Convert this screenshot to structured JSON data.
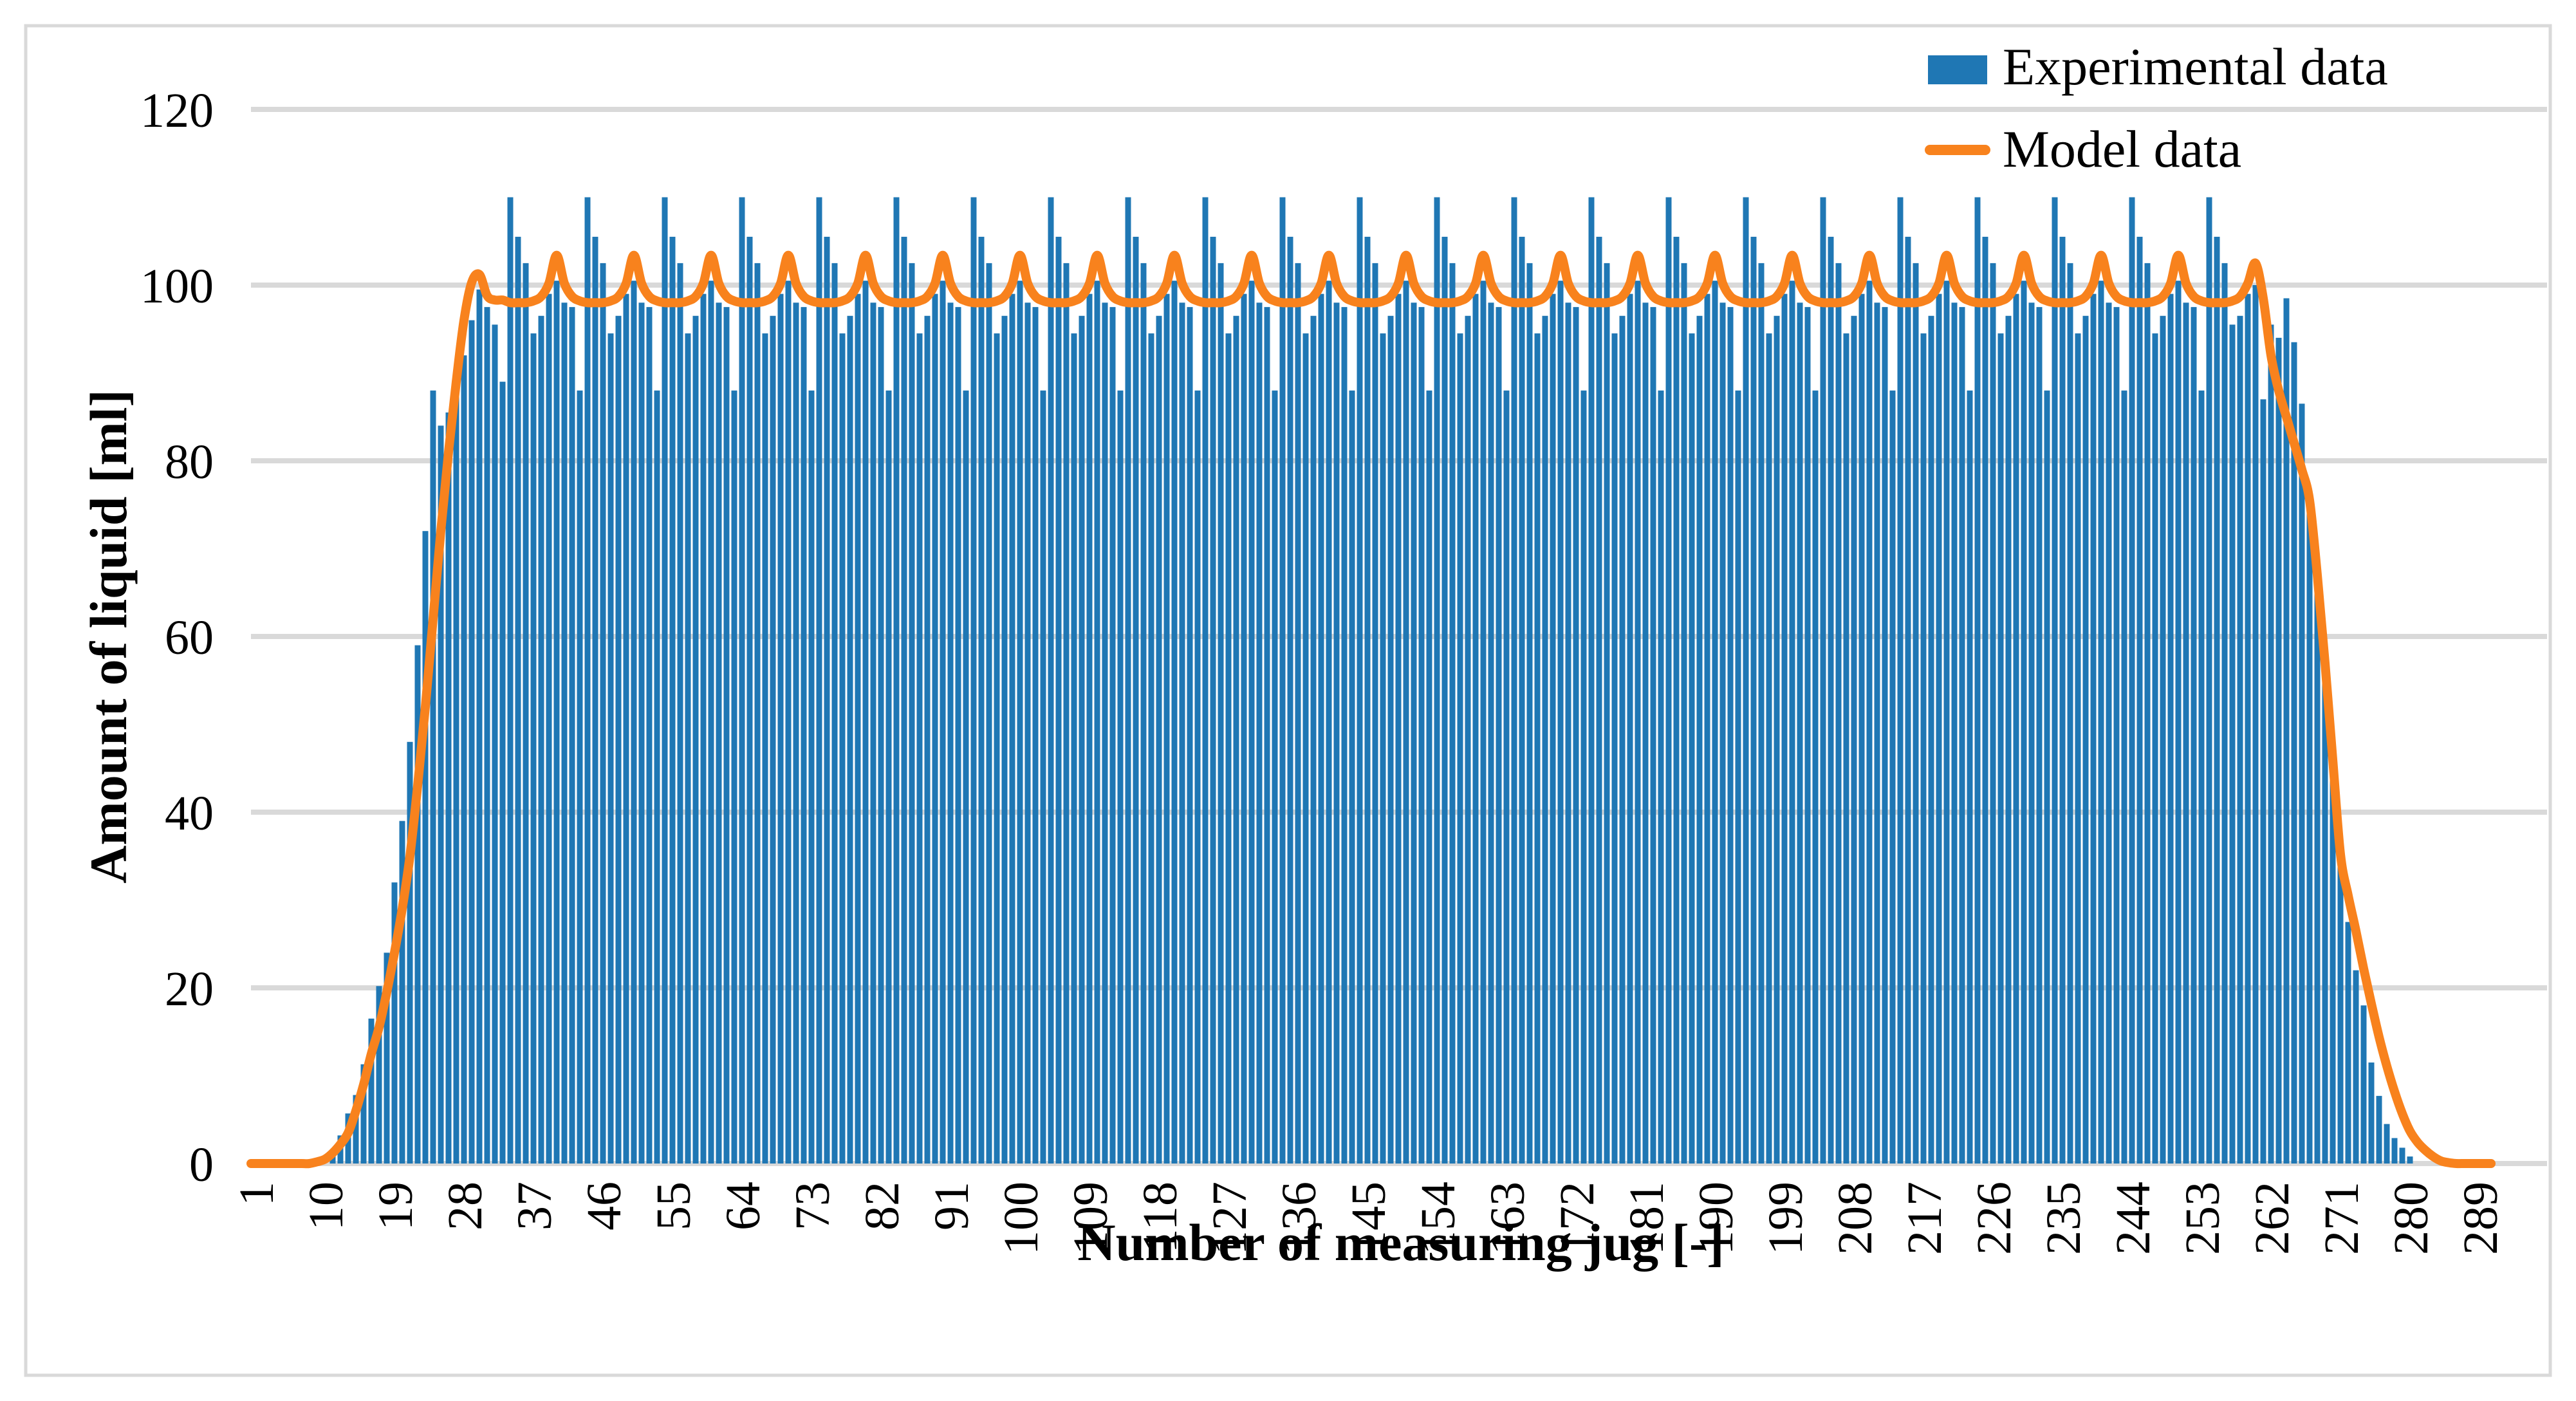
{
  "chart_data": {
    "type": "bar",
    "title": "",
    "xlabel": "Number of measuring jug [-]",
    "ylabel": "Amount of liquid [ml]",
    "x_range": [
      1,
      289
    ],
    "ylim": [
      0,
      120
    ],
    "yticks": [
      0,
      20,
      40,
      60,
      80,
      100,
      120
    ],
    "xticks": [
      1,
      10,
      19,
      28,
      37,
      46,
      55,
      64,
      73,
      82,
      91,
      100,
      109,
      118,
      127,
      136,
      145,
      154,
      163,
      172,
      181,
      190,
      199,
      208,
      217,
      226,
      235,
      244,
      253,
      262,
      271,
      280,
      289
    ],
    "grid": "horizontal",
    "legend_position": "top-right",
    "colors": {
      "experimental": "#1F77B4",
      "model": "#F8821D",
      "gridline": "#D9D9D9",
      "border": "#D9D9D9",
      "text": "#000000",
      "background": "#FFFFFF"
    },
    "series": [
      {
        "name": "Experimental data",
        "type": "bar",
        "color": "#1F77B4",
        "values": [
          0,
          0,
          0,
          0,
          0,
          0,
          0,
          0,
          0,
          0,
          1.2,
          3.2,
          5.7,
          7.8,
          11.3,
          16.5,
          20.2,
          24,
          32,
          39,
          48,
          59,
          72,
          88,
          84,
          85.5,
          89.5,
          92,
          96,
          99.5,
          97.5,
          95.5,
          89,
          110,
          105.5,
          102.5,
          94.5,
          96.5,
          99,
          100.5,
          98,
          97.5,
          88,
          110,
          105.5,
          102.5,
          94.5,
          96.5,
          99,
          100.5,
          98,
          97.5,
          88,
          110,
          105.5,
          102.5,
          94.5,
          96.5,
          99,
          100.5,
          98,
          97.5,
          88,
          110,
          105.5,
          102.5,
          94.5,
          96.5,
          99,
          100.5,
          98,
          97.5,
          88,
          110,
          105.5,
          102.5,
          94.5,
          96.5,
          99,
          100.5,
          98,
          97.5,
          88,
          110,
          105.5,
          102.5,
          94.5,
          96.5,
          99,
          100.5,
          98,
          97.5,
          88,
          110,
          105.5,
          102.5,
          94.5,
          96.5,
          99,
          100.5,
          98,
          97.5,
          88,
          110,
          105.5,
          102.5,
          94.5,
          96.5,
          99,
          100.5,
          98,
          97.5,
          88,
          110,
          105.5,
          102.5,
          94.5,
          96.5,
          99,
          100.5,
          98,
          97.5,
          88,
          110,
          105.5,
          102.5,
          94.5,
          96.5,
          99,
          100.5,
          98,
          97.5,
          88,
          110,
          105.5,
          102.5,
          94.5,
          96.5,
          99,
          100.5,
          98,
          97.5,
          88,
          110,
          105.5,
          102.5,
          94.5,
          96.5,
          99,
          100.5,
          98,
          97.5,
          88,
          110,
          105.5,
          102.5,
          94.5,
          96.5,
          99,
          100.5,
          98,
          97.5,
          88,
          110,
          105.5,
          102.5,
          94.5,
          96.5,
          99,
          100.5,
          98,
          97.5,
          88,
          110,
          105.5,
          102.5,
          94.5,
          96.5,
          99,
          100.5,
          98,
          97.5,
          88,
          110,
          105.5,
          102.5,
          94.5,
          96.5,
          99,
          100.5,
          98,
          97.5,
          88,
          110,
          105.5,
          102.5,
          94.5,
          96.5,
          99,
          100.5,
          98,
          97.5,
          88,
          110,
          105.5,
          102.5,
          94.5,
          96.5,
          99,
          100.5,
          98,
          97.5,
          88,
          110,
          105.5,
          102.5,
          94.5,
          96.5,
          99,
          100.5,
          98,
          97.5,
          88,
          110,
          105.5,
          102.5,
          94.5,
          96.5,
          99,
          100.5,
          98,
          97.5,
          88,
          110,
          105.5,
          102.5,
          94.5,
          96.5,
          99,
          100.5,
          98,
          97.5,
          88,
          110,
          105.5,
          102.5,
          94.5,
          96.5,
          99,
          100.5,
          98,
          97.5,
          88,
          110,
          105.5,
          102.5,
          95.5,
          96.5,
          99,
          100,
          87,
          95.5,
          94,
          98.5,
          93.5,
          86.5,
          76,
          65,
          55,
          45,
          36.5,
          27.5,
          22,
          18,
          11.5,
          7.7,
          4.5,
          2.9,
          1.8,
          0.8,
          0,
          0,
          0,
          0,
          0,
          0,
          0,
          0,
          0
        ]
      },
      {
        "name": "Model data",
        "type": "line",
        "color": "#F8821D",
        "values": [
          0,
          0,
          0,
          0,
          0,
          0,
          0,
          0,
          0.2,
          0.5,
          1.2,
          2.2,
          3.5,
          6,
          9,
          12.5,
          15.5,
          19.5,
          24,
          29,
          35,
          43,
          52,
          62,
          72,
          81,
          89,
          96,
          100.3,
          101.2,
          98.8,
          98.3,
          98.3,
          98,
          98,
          98,
          98.2,
          98.7,
          100.2,
          103.4,
          100.2,
          98.7,
          98.2,
          98,
          98,
          98,
          98.2,
          98.7,
          100.2,
          103.4,
          100.2,
          98.7,
          98.2,
          98,
          98,
          98,
          98.2,
          98.7,
          100.2,
          103.4,
          100.2,
          98.7,
          98.2,
          98,
          98,
          98,
          98.2,
          98.7,
          100.2,
          103.4,
          100.2,
          98.7,
          98.2,
          98,
          98,
          98,
          98.2,
          98.7,
          100.2,
          103.4,
          100.2,
          98.7,
          98.2,
          98,
          98,
          98,
          98.2,
          98.7,
          100.2,
          103.4,
          100.2,
          98.7,
          98.2,
          98,
          98,
          98,
          98.2,
          98.7,
          100.2,
          103.4,
          100.2,
          98.7,
          98.2,
          98,
          98,
          98,
          98.2,
          98.7,
          100.2,
          103.4,
          100.2,
          98.7,
          98.2,
          98,
          98,
          98,
          98.2,
          98.7,
          100.2,
          103.4,
          100.2,
          98.7,
          98.2,
          98,
          98,
          98,
          98.2,
          98.7,
          100.2,
          103.4,
          100.2,
          98.7,
          98.2,
          98,
          98,
          98,
          98.2,
          98.7,
          100.2,
          103.4,
          100.2,
          98.7,
          98.2,
          98,
          98,
          98,
          98.2,
          98.7,
          100.2,
          103.4,
          100.2,
          98.7,
          98.2,
          98,
          98,
          98,
          98.2,
          98.7,
          100.2,
          103.4,
          100.2,
          98.7,
          98.2,
          98,
          98,
          98,
          98.2,
          98.7,
          100.2,
          103.4,
          100.2,
          98.7,
          98.2,
          98,
          98,
          98,
          98.2,
          98.7,
          100.2,
          103.4,
          100.2,
          98.7,
          98.2,
          98,
          98,
          98,
          98.2,
          98.7,
          100.2,
          103.4,
          100.2,
          98.7,
          98.2,
          98,
          98,
          98,
          98.2,
          98.7,
          100.2,
          103.4,
          100.2,
          98.7,
          98.2,
          98,
          98,
          98,
          98.2,
          98.7,
          100.2,
          103.4,
          100.2,
          98.7,
          98.2,
          98,
          98,
          98,
          98.2,
          98.7,
          100.2,
          103.4,
          100.2,
          98.7,
          98.2,
          98,
          98,
          98,
          98.2,
          98.7,
          100.2,
          103.4,
          100.2,
          98.7,
          98.2,
          98,
          98,
          98,
          98.2,
          98.7,
          100.2,
          103.4,
          100.2,
          98.7,
          98.2,
          98,
          98,
          98,
          98.2,
          98.7,
          100.2,
          103.4,
          100.2,
          98.7,
          98.2,
          98,
          98,
          98,
          98.2,
          98.7,
          100.2,
          102.5,
          98.5,
          92,
          88,
          85,
          82,
          79,
          75.5,
          67,
          57,
          46,
          35.2,
          30.5,
          26.5,
          22.2,
          18.2,
          14.4,
          11.1,
          8.2,
          5.7,
          3.7,
          2.4,
          1.5,
          0.8,
          0.3,
          0.1,
          0,
          0,
          0,
          0
        ]
      }
    ]
  },
  "legend": {
    "experimental_label": "Experimental data",
    "model_label": "Model data"
  },
  "axes": {
    "x_title": "Number of measuring jug [-]",
    "y_title": "Amount of liquid [ml]"
  }
}
